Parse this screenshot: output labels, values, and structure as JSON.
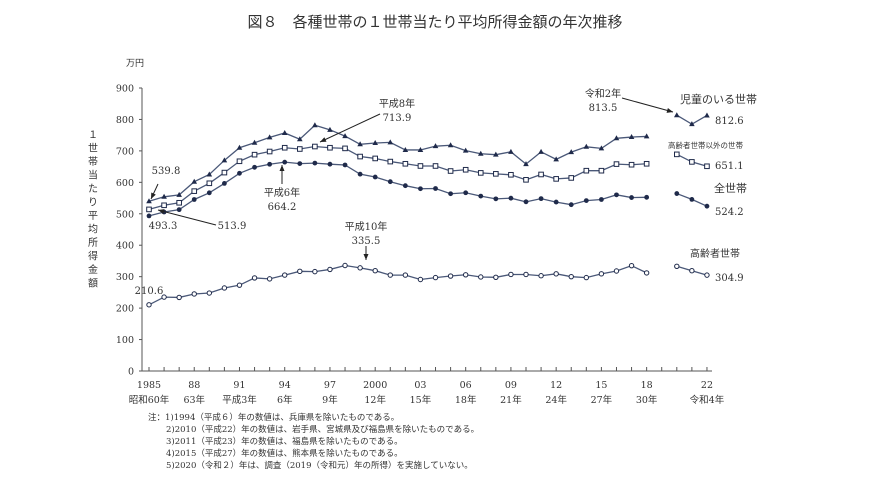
{
  "chart_data": {
    "type": "line",
    "title": "図８　各種世帯の１世帯当たり平均所得金額の年次推移",
    "ylabel": "１世帯当たり平均所得金額",
    "yunit": "万円",
    "ylim": [
      0,
      900
    ],
    "yticks": [
      "0",
      "100",
      "200",
      "300",
      "400",
      "500",
      "600",
      "700",
      "800",
      "900"
    ],
    "xlim": [
      1985,
      2022
    ],
    "xticks": [
      {
        "year": 1985,
        "label": "1985",
        "era": "昭和60年"
      },
      {
        "year": 1988,
        "label": "88",
        "era": "63年"
      },
      {
        "year": 1991,
        "label": "91",
        "era": "平成3年"
      },
      {
        "year": 1994,
        "label": "94",
        "era": "6年"
      },
      {
        "year": 1997,
        "label": "97",
        "era": "9年"
      },
      {
        "year": 2000,
        "label": "2000",
        "era": "12年"
      },
      {
        "year": 2003,
        "label": "03",
        "era": "15年"
      },
      {
        "year": 2006,
        "label": "06",
        "era": "18年"
      },
      {
        "year": 2009,
        "label": "09",
        "era": "21年"
      },
      {
        "year": 2012,
        "label": "12",
        "era": "24年"
      },
      {
        "year": 2015,
        "label": "15",
        "era": "27年"
      },
      {
        "year": 2018,
        "label": "18",
        "era": "30年"
      },
      {
        "year": 2022,
        "label": "22",
        "era": "令和4年"
      }
    ],
    "grid": false,
    "x": [
      1985,
      1986,
      1987,
      1988,
      1989,
      1990,
      1991,
      1992,
      1993,
      1994,
      1995,
      1996,
      1997,
      1998,
      1999,
      2000,
      2001,
      2002,
      2003,
      2004,
      2005,
      2006,
      2007,
      2008,
      2009,
      2010,
      2011,
      2012,
      2013,
      2014,
      2015,
      2016,
      2017,
      2018,
      2019,
      2020,
      2021,
      2022
    ],
    "series": [
      {
        "name": "児童のいる世帯",
        "marker": "filled-triangle",
        "end_label": "812.6",
        "values": [
          539.8,
          554,
          560,
          602,
          625,
          670,
          710,
          726,
          743,
          757,
          737,
          781.6,
          767,
          747,
          721,
          725,
          727,
          703,
          703,
          715,
          718,
          701,
          691,
          688,
          697,
          658,
          697,
          673,
          696,
          713,
          708,
          740,
          744,
          746,
          null,
          813.5,
          785,
          812.6
        ]
      },
      {
        "name": "高齢者世帯以外の世帯",
        "marker": "open-square",
        "end_label": "651.1",
        "values": [
          513.9,
          527,
          535,
          572,
          597,
          631,
          667,
          688,
          698,
          710,
          706,
          713.9,
          710,
          708,
          682,
          676,
          666,
          659,
          652,
          652,
          636,
          640,
          630,
          627,
          624,
          608,
          625,
          611,
          614,
          637,
          637,
          658,
          656,
          659,
          null,
          689,
          665,
          651.1
        ]
      },
      {
        "name": "全世帯",
        "marker": "filled-circle",
        "end_label": "524.2",
        "values": [
          493.3,
          505.6,
          513.2,
          545.4,
          566.7,
          596.6,
          628.7,
          647.8,
          657.5,
          664.2,
          659.6,
          661.2,
          657.7,
          655.2,
          626,
          616.9,
          602,
          589.3,
          579.7,
          580.4,
          563.8,
          566.8,
          556.2,
          547.5,
          549.6,
          538,
          548.2,
          537.2,
          528.9,
          541.9,
          545.4,
          560.2,
          551.6,
          552.3,
          null,
          564.3,
          545.7,
          524.2
        ]
      },
      {
        "name": "高齢者世帯",
        "marker": "open-circle",
        "end_label": "304.9",
        "values": [
          210.6,
          235,
          234,
          245,
          248,
          264,
          273,
          296,
          293,
          305,
          317,
          316,
          323,
          335.5,
          328,
          319,
          305,
          305,
          291,
          297,
          302,
          306,
          299,
          298,
          307,
          307,
          303,
          309,
          300,
          297,
          309,
          318,
          335,
          312,
          null,
          333,
          319,
          304.9
        ]
      }
    ],
    "annotations": [
      {
        "id": "a1",
        "text": [
          "539.8"
        ]
      },
      {
        "id": "a2",
        "text": [
          "493.3"
        ]
      },
      {
        "id": "a3",
        "text": [
          "513.9"
        ]
      },
      {
        "id": "a4",
        "text": [
          "平成6年",
          "664.2"
        ]
      },
      {
        "id": "a5",
        "text": [
          "平成8年",
          "713.9"
        ]
      },
      {
        "id": "a6",
        "text": [
          "平成10年",
          "335.5"
        ]
      },
      {
        "id": "a7",
        "text": [
          "令和2年",
          "813.5"
        ]
      },
      {
        "id": "a8",
        "text": [
          "210.6"
        ]
      }
    ],
    "colors": {
      "line": "#4a5878",
      "marker": "#1f2a4a",
      "text": "#333333"
    }
  },
  "notes": [
    "注：1)1994（平成６）年の数値は、兵庫県を除いたものである。",
    "2)2010（平成22）年の数値は、岩手県、宮城県及び福島県を除いたものである。",
    "3)2011（平成23）年の数値は、福島県を除いたものである。",
    "4)2015（平成27）年の数値は、熊本県を除いたものである。",
    "5)2020（令和２）年は、調査（2019（令和元）年の所得）を実施していない。"
  ]
}
